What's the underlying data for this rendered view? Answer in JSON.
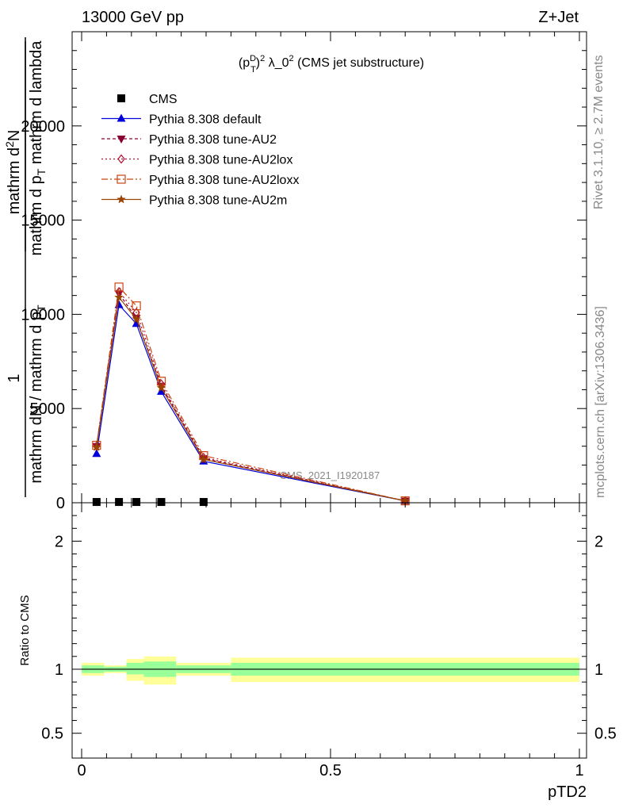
{
  "header": {
    "left": "13000 GeV pp",
    "right": "Z+Jet"
  },
  "side_labels": {
    "rivet": "Rivet 3.1.10, ≥ 2.7M events",
    "mcplots": "mcplots.cern.ch [arXiv:1306.3436]"
  },
  "watermark": "CMS_2021_I1920187",
  "colors": {
    "cms": "#000000",
    "default": "#0000dd",
    "au2": "#880033",
    "au2lox": "#aa1133",
    "au2loxx": "#cc4411",
    "au2m": "#994400",
    "band_outer": "#ffff99",
    "band_inner": "#99ff99"
  },
  "chart_data": [
    {
      "type": "line",
      "title": "(p_T^D)^2 λ_0^2 (CMS jet substructure)",
      "title_parts": {
        "a": "(p",
        "sub": "T",
        "sup1": "D",
        "b": ")",
        "sup2": "2",
        "c": " λ_0",
        "sup3": "2",
        "d": " (CMS jet substructure)"
      },
      "ylabel": "1 / mathrm dN / mathrm d p_T mathrm d p_T mathrm d lambda mathrm d^2N",
      "ylabel_parts": {
        "num": "1",
        "den": "mathrm dN / mathrm d p",
        "den_sub": "T",
        "frac2_num": "mathrm d",
        "frac2_num_sup": "2",
        "frac2_num2": "N",
        "frac2_den": "mathrm d p",
        "frac2_den_sub": "T",
        "frac2_den2": " mathrm d lambda"
      },
      "xlim": [
        0,
        1
      ],
      "ylim": [
        0,
        25000
      ],
      "yticks": [
        0,
        5000,
        10000,
        15000,
        20000
      ],
      "ytick_labels": [
        "0",
        "5000",
        "10000",
        "15000",
        "20000"
      ],
      "x": [
        0.03,
        0.075,
        0.11,
        0.16,
        0.245,
        0.65
      ],
      "series": [
        {
          "name": "CMS",
          "marker": "square",
          "dash": "",
          "values": [
            40,
            40,
            40,
            40,
            40,
            null
          ]
        },
        {
          "name": "Pythia 8.308 default",
          "marker": "triangle-up",
          "dash": "",
          "values": [
            2600,
            10500,
            9500,
            5900,
            2200,
            100
          ]
        },
        {
          "name": "Pythia 8.308 tune-AU2",
          "marker": "triangle-down",
          "dash": "4,3",
          "values": [
            3000,
            11100,
            9800,
            6200,
            2350,
            100
          ]
        },
        {
          "name": "Pythia 8.308 tune-AU2lox",
          "marker": "diamond-open",
          "dash": "2,3",
          "values": [
            3000,
            11200,
            10100,
            6300,
            2400,
            100
          ]
        },
        {
          "name": "Pythia 8.308 tune-AU2loxx",
          "marker": "square-open",
          "dash": "8,3,2,3",
          "values": [
            3050,
            11450,
            10450,
            6450,
            2500,
            100
          ]
        },
        {
          "name": "Pythia 8.308 tune-AU2m",
          "marker": "star",
          "dash": "",
          "values": [
            2950,
            10900,
            9750,
            6100,
            2300,
            100
          ]
        }
      ]
    },
    {
      "type": "line",
      "ylabel": "Ratio to CMS",
      "xlabel": "pTD2",
      "xlim": [
        0,
        1
      ],
      "ylim": [
        0.3,
        2.3
      ],
      "xticks": [
        0,
        0.5,
        1
      ],
      "xtick_labels": [
        "0",
        "0.5",
        "1"
      ],
      "yticks": [
        0.5,
        1,
        2
      ],
      "ytick_labels": [
        "0.5",
        "1",
        "2"
      ],
      "ratio_line": 1,
      "bins": [
        0,
        0.045,
        0.09,
        0.125,
        0.19,
        0.3,
        1
      ],
      "band_outer": [
        [
          0.95,
          1.05
        ],
        [
          0.97,
          1.03
        ],
        [
          0.91,
          1.08
        ],
        [
          0.88,
          1.1
        ],
        [
          0.95,
          1.05
        ],
        [
          0.9,
          1.09
        ]
      ],
      "band_inner": [
        [
          0.97,
          1.03
        ],
        [
          0.98,
          1.02
        ],
        [
          0.96,
          1.05
        ],
        [
          0.94,
          1.06
        ],
        [
          0.97,
          1.03
        ],
        [
          0.95,
          1.05
        ]
      ]
    }
  ]
}
